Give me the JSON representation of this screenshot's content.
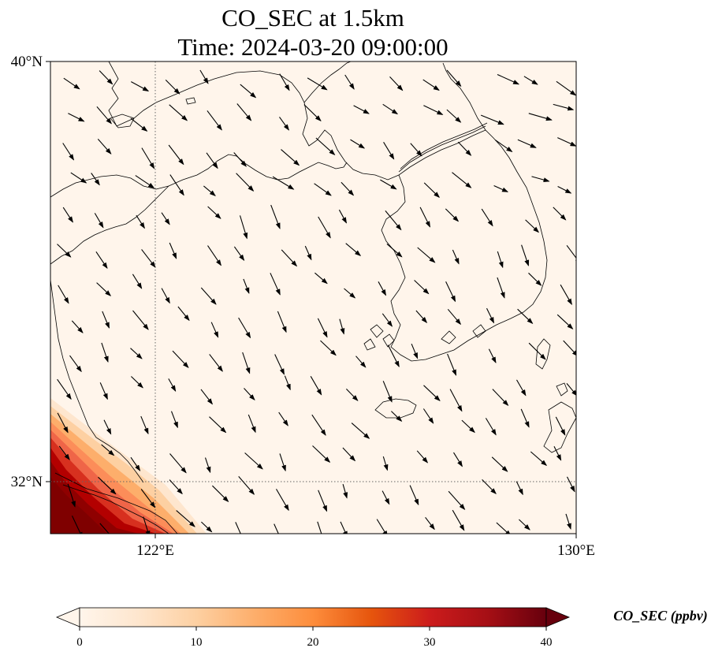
{
  "title_line1": "CO_SEC at 1.5km",
  "title_line2": "Time: 2024-03-20 09:00:00",
  "map": {
    "lon_range": [
      120,
      130
    ],
    "lat_range": [
      31,
      40
    ],
    "lon_ticks": [
      {
        "value": 122,
        "label": "122°E"
      },
      {
        "value": 130,
        "label": "130°E"
      }
    ],
    "lat_ticks": [
      {
        "value": 40,
        "label": "40°N"
      },
      {
        "value": 32,
        "label": "32°N"
      }
    ],
    "background_color": "#fff5eb",
    "gridlines": "dotted at 122°E and 32°N"
  },
  "colorbar": {
    "label": "CO_SEC (ppbv)",
    "min": 0,
    "max": 40,
    "ticks": [
      "0",
      "10",
      "20",
      "30",
      "40"
    ],
    "colormap": [
      "#fff5eb",
      "#fee6ce",
      "#fdd0a2",
      "#fdae6b",
      "#fd8d3c",
      "#e6550d",
      "#cc1c1c",
      "#a50f15",
      "#67000d"
    ],
    "extend": "both"
  },
  "concentration_plume": "high CO_SEC (up to 40 ppbv) in the southwest corner near 120–123°E, 31–32.5°N",
  "wind_vectors": "arrows pointing predominantly southeast (northwesterly flow)"
}
